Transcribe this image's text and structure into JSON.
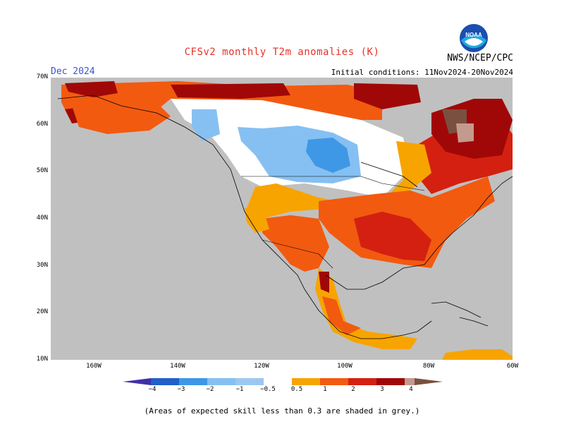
{
  "title": "CFSv2 monthly T2m anomalies (K)",
  "month": "Dec 2024",
  "initial_conditions": "Initial conditions: 11Nov2024-20Nov2024",
  "agency": "NWS/NCEP/CPC",
  "logo_text": "NOAA",
  "footnote": "(Areas of expected skill less than 0.3 are shaded in grey.)",
  "lat_labels": [
    "70N",
    "60N",
    "50N",
    "40N",
    "30N",
    "20N",
    "10N"
  ],
  "lon_labels": [
    "160W",
    "140W",
    "120W",
    "100W",
    "80W",
    "60W"
  ],
  "colorbar": {
    "labels": [
      "−4",
      "−3",
      "−2",
      "−1",
      "−0.5",
      "0.5",
      "1",
      "2",
      "3",
      "4"
    ],
    "colors": [
      "#4030a8",
      "#2060c8",
      "#3e98e6",
      "#86c0f2",
      "#ffffff",
      "#f7a400",
      "#f25a10",
      "#d42010",
      "#a00808",
      "#c49a8c",
      "#7a5040"
    ]
  },
  "colors": {
    "grey": "#c0c0c0",
    "white": "#ffffff",
    "title_red": "#e8322a",
    "month_blue": "#3a55c8"
  }
}
